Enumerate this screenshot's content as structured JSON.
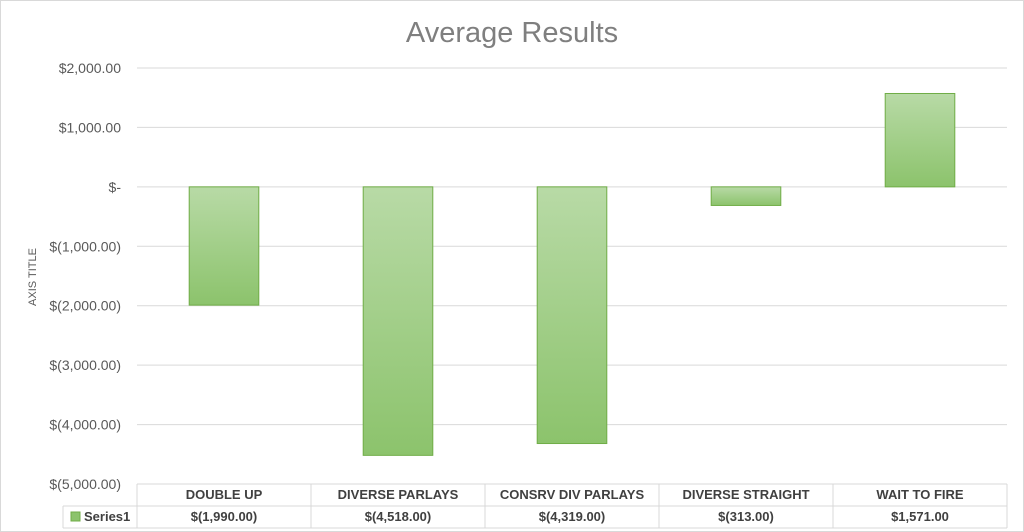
{
  "chart_data": {
    "type": "bar",
    "title": "Average Results",
    "ylabel": "AXIS TITLE",
    "xlabel": "",
    "categories": [
      "DOUBLE UP",
      "DIVERSE PARLAYS",
      "CONSRV DIV PARLAYS",
      "DIVERSE STRAIGHT",
      "WAIT TO FIRE"
    ],
    "series": [
      {
        "name": "Series1",
        "values": [
          -1990,
          -4518,
          -4319,
          -313,
          1571
        ],
        "labels": [
          "$(1,990.00)",
          "$(4,518.00)",
          "$(4,319.00)",
          "$(313.00)",
          "$1,571.00"
        ]
      }
    ],
    "ylim": [
      -5000,
      2000
    ],
    "yticks": [
      2000,
      1000,
      0,
      -1000,
      -2000,
      -3000,
      -4000,
      -5000
    ],
    "ytick_labels": [
      "$2,000.00",
      "$1,000.00",
      "$-",
      "$(1,000.00)",
      "$(2,000.00)",
      "$(3,000.00)",
      "$(4,000.00)",
      "$(5,000.00)"
    ],
    "grid": true,
    "legend": "data-table",
    "colors": {
      "bar_top": "#b8daa6",
      "bar_bottom": "#8cc36c",
      "bar_stroke": "#70ad47",
      "grid": "#d9d9d9"
    }
  }
}
